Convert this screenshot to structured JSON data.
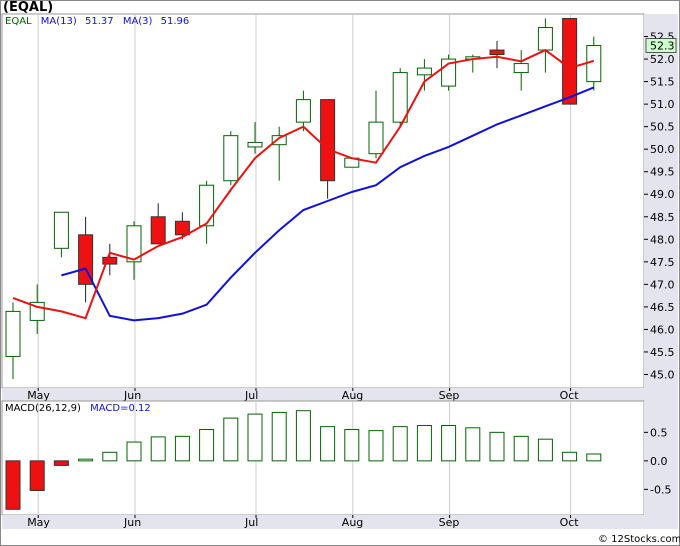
{
  "ticker": "EQAL",
  "credit": "© 12Stocks.com",
  "price_legend": {
    "symbol": "EQAL",
    "ma13_label": "MA(13)",
    "ma13_value": "51.37",
    "ma3_label": "MA(3)",
    "ma3_value": "51.96"
  },
  "macd_legend": {
    "params": "MACD(26,12,9)",
    "label": "MACD=0.12"
  },
  "last_price": "52.3",
  "colors": {
    "up_candle_stroke": "#006400",
    "down_candle_fill": "#ee1111",
    "ma13": "#1010dd",
    "ma3": "#ee1111",
    "macd_pos": "#006400",
    "macd_neg": "#ee1111",
    "axis_panel": "#e4e4ee",
    "last_price_box": "#ccffcc",
    "grid": "#cccccc"
  },
  "chart_data": [
    {
      "type": "candlestick",
      "title": "EQAL",
      "xlabels": [
        "May",
        "Jun",
        "Jul",
        "Aug",
        "Sep",
        "Oct"
      ],
      "xlabel_index": [
        1,
        5,
        10,
        14,
        18,
        23
      ],
      "ylim": [
        44.7,
        53.0
      ],
      "yticks": [
        45.0,
        45.5,
        46.0,
        46.5,
        47.0,
        47.5,
        48.0,
        48.5,
        49.0,
        49.5,
        50.0,
        50.5,
        51.0,
        51.5,
        52.0,
        52.5
      ],
      "ytick_labels": [
        "45.0",
        "45.5",
        "46.0",
        "46.5",
        "47.0",
        "47.5",
        "48.0",
        "48.5",
        "49.0",
        "49.5",
        "50.0",
        "50.5",
        "51.0",
        "51.5",
        "52.0",
        "52.5"
      ],
      "grid": "vertical",
      "candles": [
        {
          "o": 45.4,
          "h": 46.6,
          "l": 44.9,
          "c": 46.4
        },
        {
          "o": 46.2,
          "h": 47.0,
          "l": 45.9,
          "c": 46.6
        },
        {
          "o": 47.8,
          "h": 48.6,
          "l": 47.6,
          "c": 48.6
        },
        {
          "o": 48.1,
          "h": 48.5,
          "l": 46.6,
          "c": 47.0
        },
        {
          "o": 47.6,
          "h": 47.9,
          "l": 47.2,
          "c": 47.45
        },
        {
          "o": 47.5,
          "h": 48.4,
          "l": 47.1,
          "c": 48.3
        },
        {
          "o": 48.5,
          "h": 48.8,
          "l": 47.9,
          "c": 47.9
        },
        {
          "o": 48.4,
          "h": 48.6,
          "l": 48.0,
          "c": 48.1
        },
        {
          "o": 48.3,
          "h": 49.3,
          "l": 47.9,
          "c": 49.2
        },
        {
          "o": 49.3,
          "h": 50.4,
          "l": 49.2,
          "c": 50.3
        },
        {
          "o": 50.05,
          "h": 50.6,
          "l": 49.9,
          "c": 50.15
        },
        {
          "o": 50.1,
          "h": 50.5,
          "l": 49.3,
          "c": 50.3
        },
        {
          "o": 50.6,
          "h": 51.3,
          "l": 50.4,
          "c": 51.1
        },
        {
          "o": 51.1,
          "h": 51.1,
          "l": 48.9,
          "c": 49.3
        },
        {
          "o": 49.6,
          "h": 49.8,
          "l": 49.6,
          "c": 49.8
        },
        {
          "o": 49.9,
          "h": 51.3,
          "l": 49.8,
          "c": 50.6
        },
        {
          "o": 50.6,
          "h": 51.8,
          "l": 50.5,
          "c": 51.7
        },
        {
          "o": 51.65,
          "h": 52.0,
          "l": 51.3,
          "c": 51.8
        },
        {
          "o": 51.4,
          "h": 52.1,
          "l": 51.3,
          "c": 52.0
        },
        {
          "o": 52.0,
          "h": 52.1,
          "l": 51.7,
          "c": 52.05
        },
        {
          "o": 52.2,
          "h": 52.4,
          "l": 51.8,
          "c": 52.1
        },
        {
          "o": 51.7,
          "h": 52.2,
          "l": 51.3,
          "c": 51.9
        },
        {
          "o": 52.2,
          "h": 52.9,
          "l": 51.7,
          "c": 52.7
        },
        {
          "o": 52.9,
          "h": 52.9,
          "l": 51.0,
          "c": 51.0
        },
        {
          "o": 51.5,
          "h": 52.5,
          "l": 51.3,
          "c": 52.3
        }
      ],
      "series": [
        {
          "name": "MA(13)",
          "values": [
            null,
            null,
            47.2,
            47.35,
            46.3,
            46.2,
            46.25,
            46.35,
            46.55,
            47.15,
            47.7,
            48.2,
            48.65,
            48.85,
            49.05,
            49.2,
            49.6,
            49.85,
            50.05,
            50.3,
            50.55,
            50.75,
            50.95,
            51.15,
            51.37
          ]
        },
        {
          "name": "MA(3)",
          "values": [
            46.7,
            46.5,
            46.4,
            46.25,
            47.7,
            47.55,
            47.85,
            48.05,
            48.35,
            49.1,
            49.8,
            50.25,
            50.5,
            50.0,
            49.8,
            49.7,
            50.5,
            51.5,
            51.9,
            52.0,
            52.05,
            51.95,
            52.2,
            51.8,
            51.96
          ]
        }
      ]
    },
    {
      "type": "bar",
      "title": "MACD(26,12,9)",
      "ylim": [
        -0.95,
        1.05
      ],
      "yticks": [
        -0.5,
        0.0,
        0.5
      ],
      "ytick_labels": [
        "-0.5",
        "0.0",
        "0.5"
      ],
      "xlabels": [
        "May",
        "Jun",
        "Jul",
        "Aug",
        "Sep",
        "Oct"
      ],
      "values": [
        -0.85,
        -0.52,
        -0.08,
        0.03,
        0.15,
        0.33,
        0.42,
        0.43,
        0.55,
        0.75,
        0.82,
        0.85,
        0.88,
        0.6,
        0.55,
        0.53,
        0.6,
        0.62,
        0.62,
        0.58,
        0.5,
        0.43,
        0.38,
        0.15,
        0.12
      ]
    }
  ]
}
